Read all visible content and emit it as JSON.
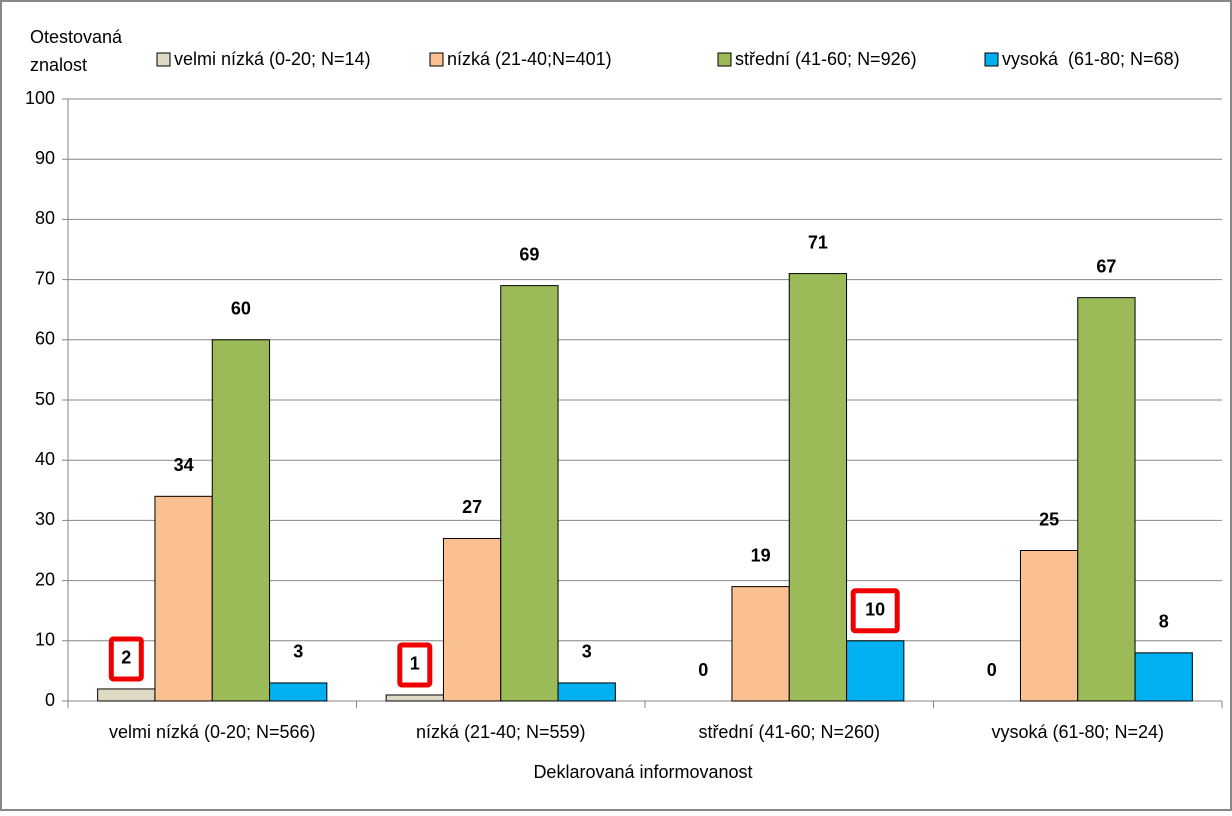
{
  "chart_data": {
    "type": "bar",
    "ylabel": [
      "Otestovaná",
      "znalost"
    ],
    "xlabel": "Deklarovaná informovanost",
    "categories": [
      "velmi nízká (0-20; N=566)",
      "nízká (21-40; N=559)",
      "střední (41-60; N=260)",
      "vysoká (61-80; N=24)"
    ],
    "series": [
      {
        "name": "velmi nízká (0-20; N=14)",
        "color": "#ddd9c3",
        "values": [
          2,
          1,
          0,
          0
        ]
      },
      {
        "name": "nízká (21-40;N=401)",
        "color": "#fac090",
        "values": [
          34,
          27,
          19,
          25
        ]
      },
      {
        "name": "střední (41-60; N=926)",
        "color": "#9bbb59",
        "values": [
          60,
          69,
          71,
          67
        ]
      },
      {
        "name": "vysoká  (61-80; N=68)",
        "color": "#00b0f0",
        "values": [
          3,
          3,
          10,
          8
        ]
      }
    ],
    "ylim": [
      0,
      100
    ],
    "yticks": [
      0,
      10,
      20,
      30,
      40,
      50,
      60,
      70,
      80,
      90,
      100
    ],
    "grid": true,
    "legend": "top"
  }
}
